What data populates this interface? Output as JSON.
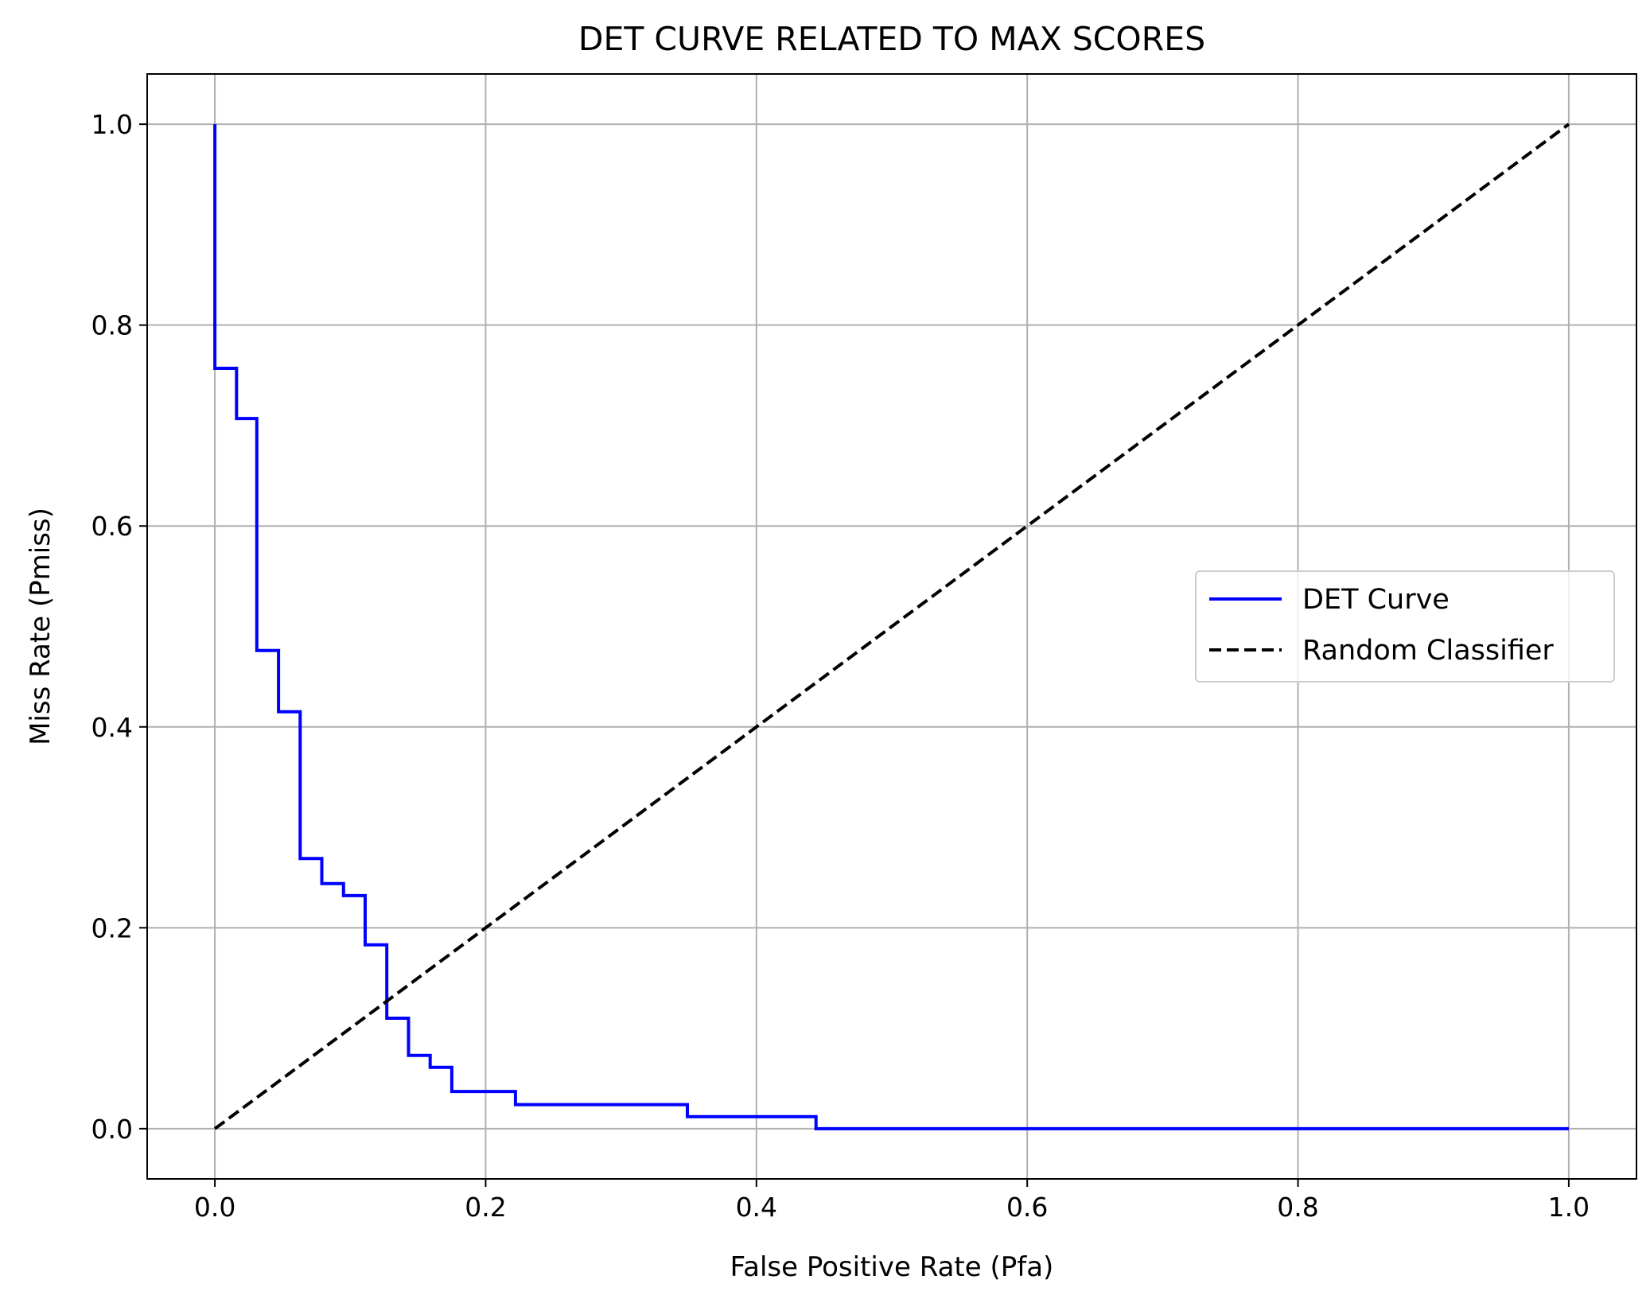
{
  "chart_data": {
    "type": "line",
    "title": "DET CURVE RELATED TO MAX SCORES",
    "xlabel": "False Positive Rate (Pfa)",
    "ylabel": "Miss Rate (Pmiss)",
    "xlim": [
      -0.05,
      1.05
    ],
    "ylim": [
      -0.05,
      1.05
    ],
    "xticks": [
      0.0,
      0.2,
      0.4,
      0.6,
      0.8,
      1.0
    ],
    "yticks": [
      0.0,
      0.2,
      0.4,
      0.6,
      0.8,
      1.0
    ],
    "xtick_labels": [
      "0.0",
      "0.2",
      "0.4",
      "0.6",
      "0.8",
      "1.0"
    ],
    "ytick_labels": [
      "0.0",
      "0.2",
      "0.4",
      "0.6",
      "0.8",
      "1.0"
    ],
    "grid": true,
    "legend_position": "center-right",
    "series": [
      {
        "name": "DET Curve",
        "color": "#0000ff",
        "style": "solid",
        "x": [
          0.0,
          0.0,
          0.016,
          0.016,
          0.031,
          0.031,
          0.047,
          0.047,
          0.063,
          0.063,
          0.079,
          0.079,
          0.095,
          0.095,
          0.111,
          0.111,
          0.127,
          0.127,
          0.143,
          0.143,
          0.159,
          0.159,
          0.175,
          0.175,
          0.222,
          0.222,
          0.349,
          0.349,
          0.444,
          0.444,
          1.0
        ],
        "y": [
          1.0,
          0.757,
          0.757,
          0.707,
          0.707,
          0.476,
          0.476,
          0.415,
          0.415,
          0.269,
          0.269,
          0.244,
          0.244,
          0.232,
          0.232,
          0.183,
          0.183,
          0.11,
          0.11,
          0.073,
          0.073,
          0.061,
          0.061,
          0.037,
          0.037,
          0.024,
          0.024,
          0.012,
          0.012,
          0.0,
          0.0
        ]
      },
      {
        "name": "Random Classifier",
        "color": "#000000",
        "style": "dashed",
        "x": [
          0.0,
          1.0
        ],
        "y": [
          0.0,
          1.0
        ]
      }
    ]
  }
}
